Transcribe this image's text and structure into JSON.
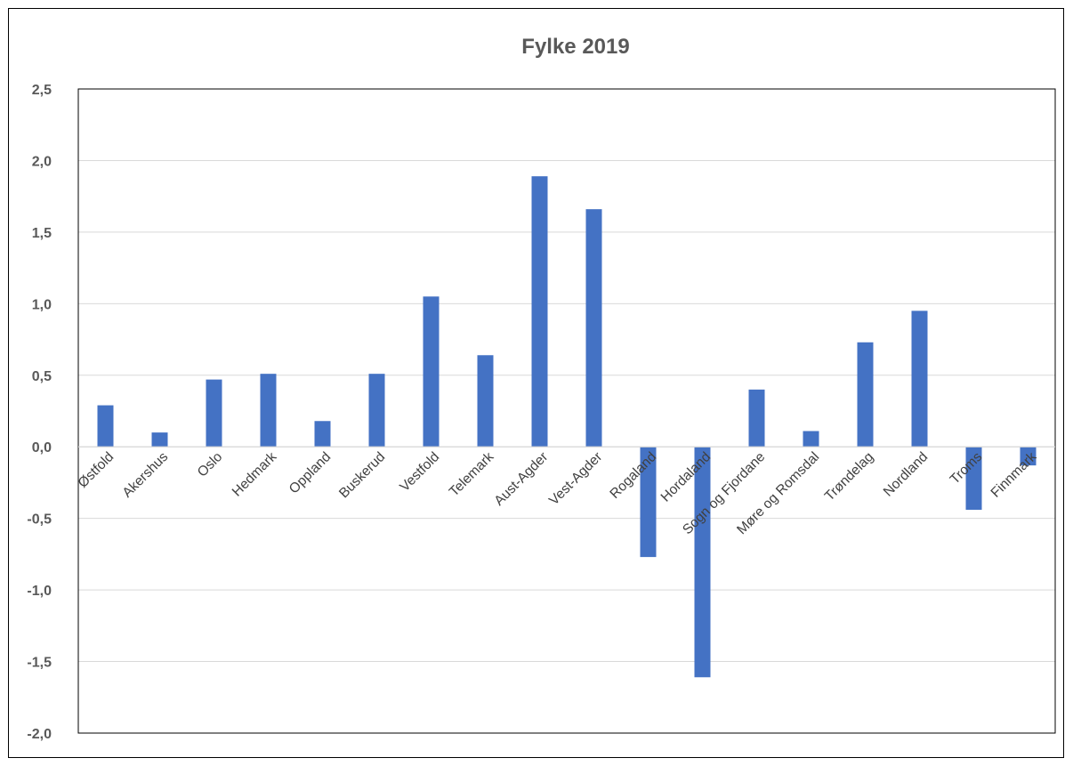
{
  "chart_data": {
    "type": "bar",
    "title": "Fylke 2019",
    "xlabel": "",
    "ylabel": "",
    "ylim": [
      -2.0,
      2.5
    ],
    "yticks": [
      2.5,
      2.0,
      1.5,
      1.0,
      0.5,
      0.0,
      -0.5,
      -1.0,
      -1.5,
      -2.0
    ],
    "ytick_labels": [
      "2,5",
      "2,0",
      "1,5",
      "1,0",
      "0,5",
      "0,0",
      "-0,5",
      "-1,0",
      "-1,5",
      "-2,0"
    ],
    "grid": true,
    "legend": false,
    "bar_color": "#4472C4",
    "categories": [
      "Østfold",
      "Akershus",
      "Oslo",
      "Hedmark",
      "Oppland",
      "Buskerud",
      "Vestfold",
      "Telemark",
      "Aust-Agder",
      "Vest-Agder",
      "Rogaland",
      "Hordaland",
      "Sogn og Fjordane",
      "Møre og Romsdal",
      "Trøndelag",
      "Nordland",
      "Troms",
      "Finnmark"
    ],
    "values": [
      0.29,
      0.1,
      0.47,
      0.51,
      0.18,
      0.51,
      1.05,
      0.64,
      1.89,
      1.66,
      -0.77,
      -1.61,
      0.4,
      0.11,
      0.73,
      0.95,
      -0.44,
      -0.13
    ]
  }
}
